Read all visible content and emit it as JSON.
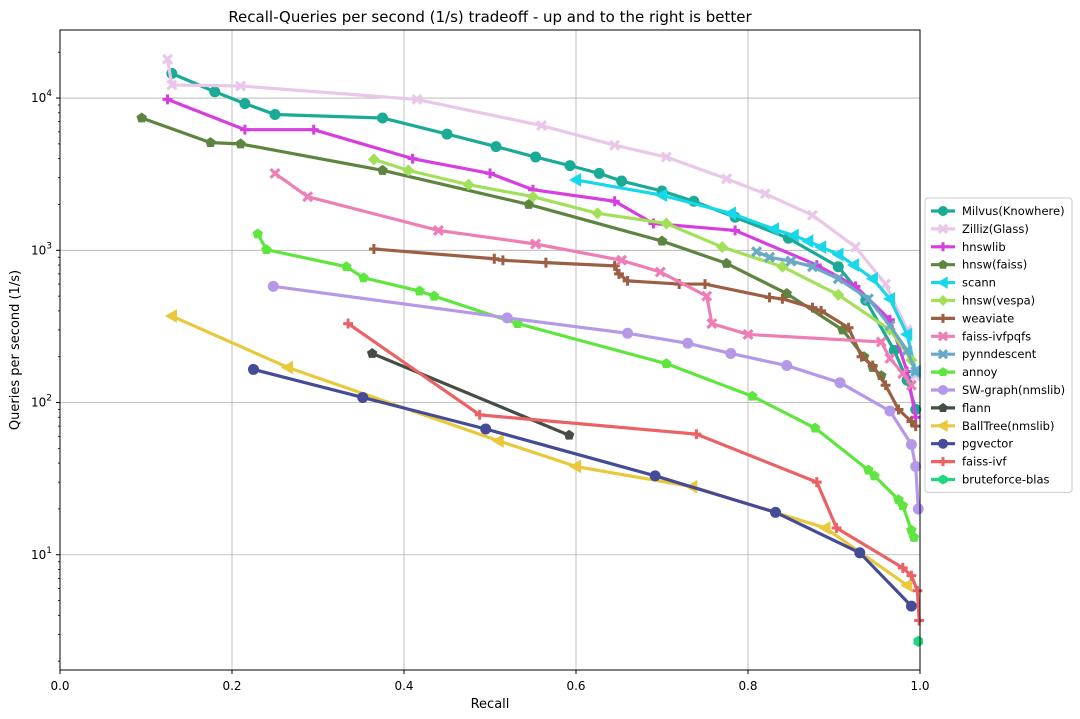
{
  "chart_data": {
    "type": "line",
    "title": "Recall-Queries per second (1/s) tradeoff - up and to the right is better",
    "xlabel": "Recall",
    "ylabel": "Queries per second (1/s)",
    "xlim": [
      0.0,
      1.0
    ],
    "ylim": [
      1.75,
      28000
    ],
    "yscale": "log",
    "grid": true,
    "legend_position": "right",
    "xticks": [
      0.0,
      0.2,
      0.4,
      0.6,
      0.8,
      1.0
    ],
    "xtick_labels": [
      "0.0",
      "0.2",
      "0.4",
      "0.6",
      "0.8",
      "1.0"
    ],
    "yticks": [
      10,
      100,
      1000,
      10000
    ],
    "ytick_labels": [
      {
        "base": "10",
        "exp": "1"
      },
      {
        "base": "10",
        "exp": "2"
      },
      {
        "base": "10",
        "exp": "3"
      },
      {
        "base": "10",
        "exp": "4"
      }
    ],
    "series": [
      {
        "name": "Milvus(Knowhere)",
        "color": "#1aab96",
        "marker": "circle",
        "x": [
          0.13,
          0.18,
          0.215,
          0.25,
          0.375,
          0.45,
          0.507,
          0.553,
          0.593,
          0.627,
          0.653,
          0.7,
          0.737,
          0.785,
          0.847,
          0.905,
          0.937,
          0.97,
          0.985,
          0.995
        ],
        "y": [
          14500,
          11000,
          9200,
          7800,
          7400,
          5800,
          4800,
          4100,
          3600,
          3200,
          2850,
          2450,
          2100,
          1650,
          1200,
          780,
          470,
          220,
          140,
          90
        ]
      },
      {
        "name": "Zilliz(Glass)",
        "color": "#e9c7e8",
        "marker": "x",
        "x": [
          0.125,
          0.13,
          0.21,
          0.415,
          0.56,
          0.645,
          0.705,
          0.775,
          0.82,
          0.875,
          0.925,
          0.96,
          0.985,
          0.995
        ],
        "y": [
          18000,
          12200,
          12000,
          9800,
          6600,
          4900,
          4100,
          2950,
          2350,
          1700,
          1050,
          600,
          300,
          150
        ]
      },
      {
        "name": "hnswlib",
        "color": "#d63ee0",
        "marker": "plus",
        "x": [
          0.125,
          0.215,
          0.295,
          0.41,
          0.5,
          0.55,
          0.645,
          0.69,
          0.785,
          0.88,
          0.925,
          0.965,
          0.985,
          0.995
        ],
        "y": [
          9800,
          6200,
          6200,
          4000,
          3200,
          2500,
          2100,
          1500,
          1350,
          800,
          580,
          350,
          160,
          80
        ]
      },
      {
        "name": "hnsw(faiss)",
        "color": "#5d8540",
        "marker": "pentagon",
        "x": [
          0.095,
          0.175,
          0.21,
          0.375,
          0.545,
          0.7,
          0.775,
          0.845,
          0.91,
          0.935,
          0.945,
          0.955
        ],
        "y": [
          7400,
          5100,
          5000,
          3350,
          2000,
          1150,
          820,
          520,
          300,
          200,
          170,
          150
        ]
      },
      {
        "name": "scann",
        "color": "#18d7e8",
        "marker": "triangle-left",
        "x": [
          0.6,
          0.7,
          0.78,
          0.83,
          0.853,
          0.87,
          0.885,
          0.905,
          0.923,
          0.945,
          0.965,
          0.985,
          0.995
        ],
        "y": [
          2900,
          2300,
          1750,
          1380,
          1250,
          1150,
          1050,
          940,
          800,
          650,
          480,
          280,
          160
        ]
      },
      {
        "name": "hnsw(vespa)",
        "color": "#a3e05a",
        "marker": "diamond",
        "x": [
          0.365,
          0.405,
          0.475,
          0.55,
          0.625,
          0.705,
          0.77,
          0.84,
          0.905,
          0.965,
          0.99
        ],
        "y": [
          3950,
          3350,
          2700,
          2250,
          1750,
          1500,
          1050,
          780,
          510,
          300,
          190
        ]
      },
      {
        "name": "weaviate",
        "color": "#9c5f44",
        "marker": "plus",
        "x": [
          0.365,
          0.505,
          0.515,
          0.565,
          0.645,
          0.65,
          0.66,
          0.72,
          0.75,
          0.825,
          0.84,
          0.875,
          0.885,
          0.917,
          0.932,
          0.945,
          0.96,
          0.975,
          0.99,
          0.995
        ],
        "y": [
          1020,
          880,
          860,
          830,
          790,
          700,
          630,
          600,
          600,
          490,
          480,
          420,
          400,
          310,
          200,
          175,
          130,
          90,
          75,
          70
        ]
      },
      {
        "name": "faiss-ivfpqfs",
        "color": "#ee7eb6",
        "marker": "x",
        "x": [
          0.25,
          0.288,
          0.44,
          0.553,
          0.653,
          0.698,
          0.752,
          0.758,
          0.8,
          0.955,
          0.965,
          0.98,
          0.99
        ],
        "y": [
          3200,
          2250,
          1350,
          1100,
          860,
          720,
          500,
          330,
          280,
          250,
          195,
          155,
          130
        ]
      },
      {
        "name": "pynndescent",
        "color": "#6aa8c8",
        "marker": "x",
        "x": [
          0.81,
          0.825,
          0.85,
          0.875,
          0.905,
          0.94,
          0.965,
          0.985,
          0.995
        ],
        "y": [
          980,
          900,
          850,
          780,
          650,
          480,
          320,
          220,
          160
        ]
      },
      {
        "name": "annoy",
        "color": "#5ee63e",
        "marker": "pentagon",
        "x": [
          0.23,
          0.24,
          0.333,
          0.353,
          0.418,
          0.435,
          0.532,
          0.705,
          0.805,
          0.878,
          0.94,
          0.947,
          0.975,
          0.98,
          0.99,
          0.993
        ],
        "y": [
          1280,
          1010,
          780,
          660,
          540,
          500,
          330,
          180,
          110,
          68,
          36,
          33,
          23,
          21,
          14.5,
          13
        ]
      },
      {
        "name": "SW-graph(nmslib)",
        "color": "#b599e8",
        "marker": "circle",
        "x": [
          0.248,
          0.52,
          0.66,
          0.73,
          0.78,
          0.845,
          0.907,
          0.965,
          0.99,
          0.995,
          0.998
        ],
        "y": [
          580,
          360,
          285,
          245,
          210,
          175,
          135,
          88,
          53,
          38,
          20
        ]
      },
      {
        "name": "flann",
        "color": "#454e44",
        "marker": "pentagon",
        "x": [
          0.363,
          0.592
        ],
        "y": [
          210,
          61
        ]
      },
      {
        "name": "BallTree(nmslib)",
        "color": "#e9c83b",
        "marker": "triangle-left",
        "x": [
          0.13,
          0.265,
          0.51,
          0.6,
          0.735,
          0.89,
          0.985
        ],
        "y": [
          370,
          170,
          56,
          38,
          28,
          15,
          6.3
        ]
      },
      {
        "name": "pgvector",
        "color": "#464b98",
        "marker": "circle",
        "x": [
          0.225,
          0.352,
          0.495,
          0.692,
          0.832,
          0.93,
          0.99
        ],
        "y": [
          165,
          108,
          67,
          33,
          19,
          10.3,
          4.6
        ]
      },
      {
        "name": "faiss-ivf",
        "color": "#ea6264",
        "marker": "plus",
        "x": [
          0.335,
          0.488,
          0.74,
          0.88,
          0.903,
          0.98,
          0.99,
          0.997,
          0.999
        ],
        "y": [
          330,
          83,
          62,
          30,
          15,
          8.2,
          7.3,
          5.8,
          3.7
        ]
      },
      {
        "name": "bruteforce-blas",
        "color": "#1ed77f",
        "marker": "hexagon",
        "x": [
          0.998
        ],
        "y": [
          2.7
        ]
      }
    ]
  }
}
